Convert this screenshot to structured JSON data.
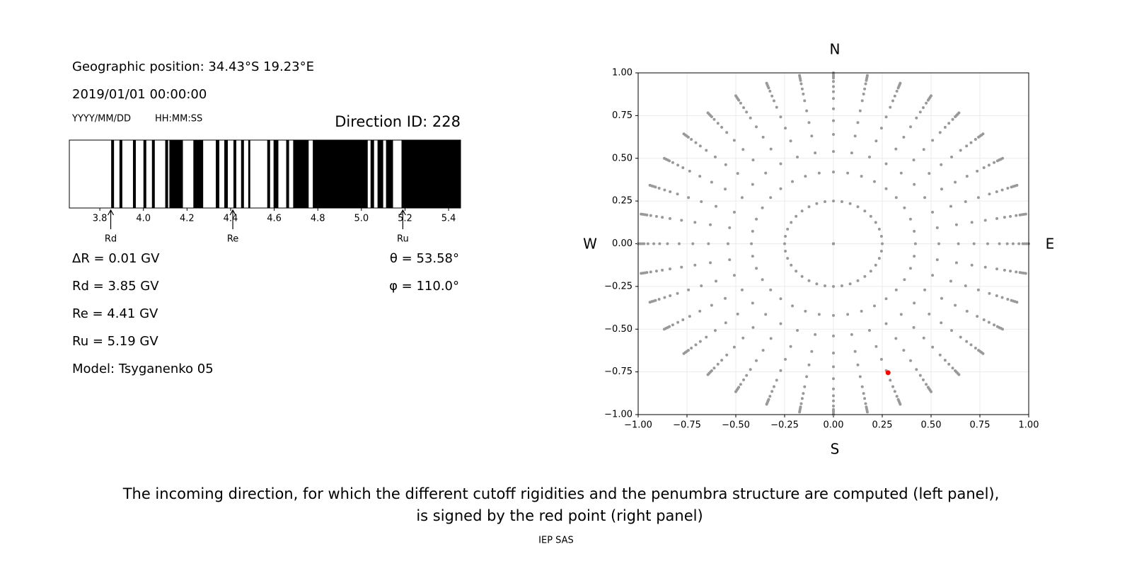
{
  "chart_data": [
    {
      "type": "penumbra",
      "position": "Geographic position: 34.43°S 19.23°E",
      "datetime": "2019/01/01 00:00:00",
      "date_format": "YYYY/MM/DD",
      "time_format": "HH:MM:SS",
      "title": "Direction ID: 228",
      "xlim": [
        3.66,
        5.455
      ],
      "xticks": [
        3.8,
        {
          "value": 4,
          "label": "4.0"
        },
        4.2,
        4.4,
        4.6,
        4.8,
        {
          "value": 5,
          "label": "5.0"
        },
        5.2,
        5.4
      ],
      "color": "#000000",
      "forbidden": [
        [
          3.852,
          3.865
        ],
        [
          3.89,
          3.903
        ],
        [
          3.952,
          3.965
        ],
        [
          4.0,
          4.013
        ],
        [
          4.039,
          4.052
        ],
        [
          4.1,
          4.113
        ],
        [
          4.119,
          4.181
        ],
        [
          4.229,
          4.274
        ],
        [
          4.332,
          4.348
        ],
        [
          4.371,
          4.387
        ],
        [
          4.413,
          4.426
        ],
        [
          4.448,
          4.461
        ],
        [
          4.481,
          4.49
        ],
        [
          4.568,
          4.581
        ],
        [
          4.597,
          4.619
        ],
        [
          4.655,
          4.668
        ],
        [
          4.687,
          4.758
        ],
        [
          4.777,
          5.029
        ],
        [
          5.042,
          5.058
        ],
        [
          5.074,
          5.1
        ],
        [
          5.113,
          5.145
        ],
        [
          5.184,
          5.455
        ]
      ],
      "markers": [
        {
          "name": "Rd",
          "value": 3.85
        },
        {
          "name": "Re",
          "value": 4.41
        },
        {
          "name": "Ru",
          "value": 5.19
        }
      ],
      "stats": [
        "ΔR = 0.01 GV",
        "Rd = 3.85 GV",
        "Re = 4.41 GV",
        "Ru = 5.19 GV",
        "Model: Tsyganenko 05"
      ],
      "angles": [
        "θ = 53.58°",
        "φ = 110.0°"
      ]
    },
    {
      "type": "scatter",
      "directions": {
        "top": "N",
        "bottom": "S",
        "left": "W",
        "right": "E"
      },
      "xlim": [
        -1,
        1
      ],
      "ylim": [
        -1,
        1
      ],
      "xticks": [
        {
          "value": -1,
          "label": "−1.00"
        },
        {
          "value": -0.75,
          "label": "−0.75"
        },
        {
          "value": -0.5,
          "label": "−0.50"
        },
        {
          "value": -0.25,
          "label": "−0.25"
        },
        {
          "value": 0,
          "label": "0.00"
        },
        0.25,
        {
          "value": 0.5,
          "label": "0.50"
        },
        0.75,
        {
          "value": 1,
          "label": "1.00"
        }
      ],
      "yticks": [
        {
          "value": -1,
          "label": "−1.00"
        },
        {
          "value": -0.75,
          "label": "−0.75"
        },
        {
          "value": -0.5,
          "label": "−0.50"
        },
        {
          "value": -0.25,
          "label": "−0.25"
        },
        {
          "value": 0,
          "label": "0.00"
        },
        0.25,
        {
          "value": 0.5,
          "label": "0.50"
        },
        0.75,
        {
          "value": 1,
          "label": "1.00"
        }
      ],
      "grid": true,
      "grid_points": {
        "color": "#999999",
        "azimuths": [
          0,
          10,
          20,
          30,
          40,
          50,
          60,
          70,
          80,
          90,
          100,
          110,
          120,
          130,
          140,
          150,
          160,
          170,
          180,
          190,
          200,
          210,
          220,
          230,
          240,
          250,
          260,
          270,
          280,
          290,
          300,
          310,
          320,
          330,
          340,
          350
        ],
        "radii": [
          0,
          0.25,
          0.42,
          0.54,
          0.64,
          0.72,
          0.79,
          0.85,
          0.89,
          0.92,
          0.95,
          0.97,
          0.98,
          0.99,
          1.0
        ]
      },
      "selected": {
        "color": "#ff0000",
        "x": 0.28,
        "y": -0.755
      }
    }
  ],
  "caption": [
    "The incoming direction, for which the different cutoff rigidities and the penumbra structure are computed (left panel),",
    "is signed by the red point (right panel)"
  ],
  "footer": "IEP SAS"
}
